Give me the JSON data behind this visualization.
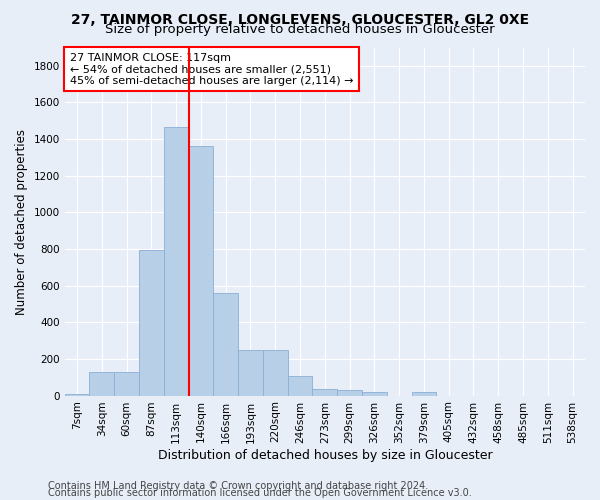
{
  "title_line1": "27, TAINMOR CLOSE, LONGLEVENS, GLOUCESTER, GL2 0XE",
  "title_line2": "Size of property relative to detached houses in Gloucester",
  "xlabel": "Distribution of detached houses by size in Gloucester",
  "ylabel": "Number of detached properties",
  "categories": [
    "7sqm",
    "34sqm",
    "60sqm",
    "87sqm",
    "113sqm",
    "140sqm",
    "166sqm",
    "193sqm",
    "220sqm",
    "246sqm",
    "273sqm",
    "299sqm",
    "326sqm",
    "352sqm",
    "379sqm",
    "405sqm",
    "432sqm",
    "458sqm",
    "485sqm",
    "511sqm",
    "538sqm"
  ],
  "values": [
    10,
    130,
    130,
    795,
    1465,
    1360,
    560,
    250,
    250,
    108,
    35,
    30,
    20,
    0,
    20,
    0,
    0,
    0,
    0,
    0,
    0
  ],
  "bar_color": "#b8cfe8",
  "bar_edge_color": "#8aafd4",
  "vline_x_idx": 4,
  "vline_color": "red",
  "annotation_text": "27 TAINMOR CLOSE: 117sqm\n← 54% of detached houses are smaller (2,551)\n45% of semi-detached houses are larger (2,114) →",
  "annotation_box_color": "red",
  "annotation_box_fill": "white",
  "ylim": [
    0,
    1900
  ],
  "yticks": [
    0,
    200,
    400,
    600,
    800,
    1000,
    1200,
    1400,
    1600,
    1800
  ],
  "footer_line1": "Contains HM Land Registry data © Crown copyright and database right 2024.",
  "footer_line2": "Contains public sector information licensed under the Open Government Licence v3.0.",
  "bg_color": "#e8eef8",
  "grid_color": "#ffffff",
  "title_fontsize": 10,
  "subtitle_fontsize": 9.5,
  "ylabel_fontsize": 8.5,
  "xlabel_fontsize": 9,
  "tick_fontsize": 7.5,
  "annotation_fontsize": 8,
  "footer_fontsize": 7
}
